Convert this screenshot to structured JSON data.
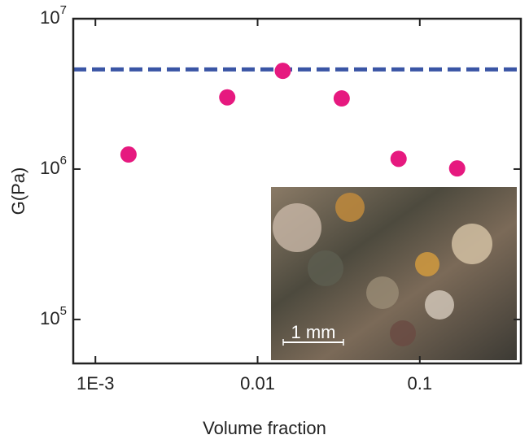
{
  "chart_data": {
    "type": "scatter",
    "x_label": "Volume fraction",
    "y_label": "G(Pa)",
    "x": [
      0.0016,
      0.0065,
      0.0143,
      0.033,
      0.074,
      0.17
    ],
    "series": [
      {
        "color": "#e6197f",
        "values": [
          1250000,
          3000000,
          4500000,
          2950000,
          1170000,
          1010000
        ]
      }
    ],
    "hline": {
      "value": 4600000,
      "color": "#3a55a5",
      "style": "dashed"
    },
    "xlim": [
      0.00073,
      0.42
    ],
    "ylim": [
      51000,
      10000000
    ],
    "xticks": [
      {
        "value": 0.001,
        "label": "1E-3"
      },
      0.01,
      0.1
    ],
    "yticks": [
      {
        "value": 100000,
        "label": "10^5"
      },
      {
        "value": 1000000,
        "label": "10^6"
      },
      {
        "value": 10000000,
        "label": "10^7"
      }
    ],
    "xscale": "log",
    "yscale": "log",
    "inset_scale_label": "1 mm"
  }
}
